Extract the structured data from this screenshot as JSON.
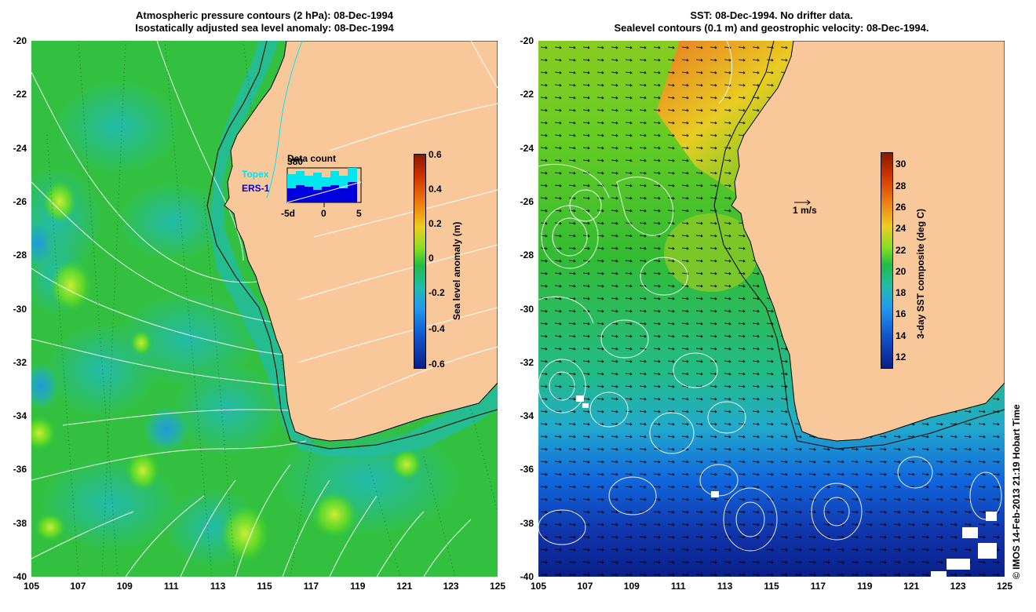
{
  "left_panel": {
    "title_line1": "Atmospheric pressure contours (2 hPa): 08-Dec-1994",
    "title_line2": "Isostatically adjusted sea level anomaly: 08-Dec-1994",
    "colorbar_label": "Sea level anomaly (m)",
    "colorbar_ticks": [
      "0.6",
      "0.4",
      "0.2",
      "0",
      "-0.2",
      "-0.4",
      "-0.6"
    ],
    "inset": {
      "title": "Data count",
      "count": "380",
      "series": [
        "Topex",
        "ERS-1"
      ],
      "xticks": [
        "-5d",
        "0",
        "5"
      ]
    }
  },
  "right_panel": {
    "title_line1": "SST: 08-Dec-1994. No drifter data.",
    "title_line2": "Sealevel contours (0.1 m) and geostrophic velocity: 08-Dec-1994.",
    "colorbar_label": "3-day SST composite (deg C)",
    "colorbar_ticks": [
      "30",
      "28",
      "26",
      "24",
      "22",
      "20",
      "18",
      "16",
      "14",
      "12"
    ],
    "scale_label": "1 m/s"
  },
  "axes": {
    "y_ticks": [
      "-20",
      "-22",
      "-24",
      "-26",
      "-28",
      "-30",
      "-32",
      "-34",
      "-36",
      "-38",
      "-40"
    ],
    "x_ticks": [
      "105",
      "107",
      "109",
      "111",
      "113",
      "115",
      "117",
      "119",
      "121",
      "123",
      "125"
    ]
  },
  "colors": {
    "land": "#f9c89a",
    "ocean_green": "#22bb44",
    "topex": "#00e5ee",
    "ers1": "#0000dd"
  },
  "copyright": "© IMOS 14-Feb-2013 21:19 Hobart Time"
}
